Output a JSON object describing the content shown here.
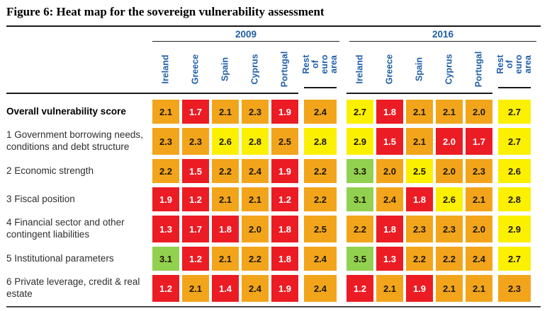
{
  "title": "Figure 6: Heat map for the sovereign vulnerability assessment",
  "chart_data": {
    "type": "heatmap",
    "title": "Heat map for the sovereign vulnerability assessment",
    "column_groups": [
      {
        "year": "2009",
        "columns": [
          "Ireland",
          "Greece",
          "Spain",
          "Cyprus",
          "Portugal",
          "Rest of\neuro area"
        ]
      },
      {
        "year": "2016",
        "columns": [
          "Ireland",
          "Greece",
          "Spain",
          "Cyprus",
          "Portugal",
          "Rest of\neuro area"
        ]
      }
    ],
    "color_scale": {
      "red": "#EC1C24",
      "orange": "#F2A51B",
      "yellow": "#FBF000",
      "green": "#92D050"
    },
    "text_colors": {
      "on_red": "#ffffff",
      "on_light": "#1d1600",
      "header_blue": "#1F5FA8"
    },
    "rows": [
      {
        "label": "Overall vulnerability score",
        "bold": true,
        "values_2009": [
          2.1,
          1.7,
          2.1,
          2.3,
          1.9,
          2.4
        ],
        "colors_2009": [
          "orange",
          "red",
          "orange",
          "orange",
          "red",
          "orange"
        ],
        "values_2016": [
          2.7,
          1.8,
          2.1,
          2.1,
          2.0,
          2.7
        ],
        "colors_2016": [
          "yellow",
          "red",
          "orange",
          "orange",
          "orange",
          "yellow"
        ]
      },
      {
        "label": "1 Government borrowing needs, conditions and debt structure",
        "bold": false,
        "values_2009": [
          2.3,
          2.3,
          2.6,
          2.8,
          2.5,
          2.8
        ],
        "colors_2009": [
          "orange",
          "orange",
          "yellow",
          "yellow",
          "orange",
          "yellow"
        ],
        "values_2016": [
          2.9,
          1.5,
          2.1,
          2.0,
          1.7,
          2.7
        ],
        "colors_2016": [
          "yellow",
          "red",
          "orange",
          "red",
          "red",
          "yellow"
        ]
      },
      {
        "label": "2 Economic strength",
        "bold": false,
        "values_2009": [
          2.2,
          1.5,
          2.2,
          2.4,
          1.9,
          2.2
        ],
        "colors_2009": [
          "orange",
          "red",
          "orange",
          "orange",
          "red",
          "orange"
        ],
        "values_2016": [
          3.3,
          2.0,
          2.5,
          2.0,
          2.3,
          2.6
        ],
        "colors_2016": [
          "green",
          "orange",
          "yellow",
          "orange",
          "orange",
          "yellow"
        ]
      },
      {
        "label": "3 Fiscal position",
        "bold": false,
        "values_2009": [
          1.9,
          1.2,
          2.1,
          2.1,
          1.2,
          2.2
        ],
        "colors_2009": [
          "red",
          "red",
          "orange",
          "orange",
          "red",
          "orange"
        ],
        "values_2016": [
          3.1,
          2.4,
          1.8,
          2.6,
          2.1,
          2.8
        ],
        "colors_2016": [
          "green",
          "orange",
          "red",
          "yellow",
          "orange",
          "yellow"
        ]
      },
      {
        "label": "4 Financial sector and other contingent liabilities",
        "bold": false,
        "values_2009": [
          1.3,
          1.7,
          1.8,
          2.0,
          1.8,
          2.5
        ],
        "colors_2009": [
          "red",
          "red",
          "red",
          "orange",
          "red",
          "orange"
        ],
        "values_2016": [
          2.2,
          1.8,
          2.3,
          2.3,
          2.0,
          2.9
        ],
        "colors_2016": [
          "orange",
          "red",
          "orange",
          "orange",
          "orange",
          "yellow"
        ]
      },
      {
        "label": "5 Institutional parameters",
        "bold": false,
        "values_2009": [
          3.1,
          1.2,
          2.1,
          2.2,
          1.8,
          2.4
        ],
        "colors_2009": [
          "green",
          "red",
          "orange",
          "orange",
          "red",
          "orange"
        ],
        "values_2016": [
          3.5,
          1.3,
          2.2,
          2.2,
          2.4,
          2.7
        ],
        "colors_2016": [
          "green",
          "red",
          "orange",
          "orange",
          "orange",
          "yellow"
        ]
      },
      {
        "label": "6 Private leverage, credit & real estate",
        "bold": false,
        "values_2009": [
          1.2,
          2.1,
          1.4,
          2.4,
          1.9,
          2.4
        ],
        "colors_2009": [
          "red",
          "orange",
          "red",
          "orange",
          "red",
          "orange"
        ],
        "values_2016": [
          1.2,
          2.1,
          1.9,
          2.1,
          2.1,
          2.3
        ],
        "colors_2016": [
          "red",
          "orange",
          "red",
          "orange",
          "orange",
          "orange"
        ]
      }
    ]
  }
}
